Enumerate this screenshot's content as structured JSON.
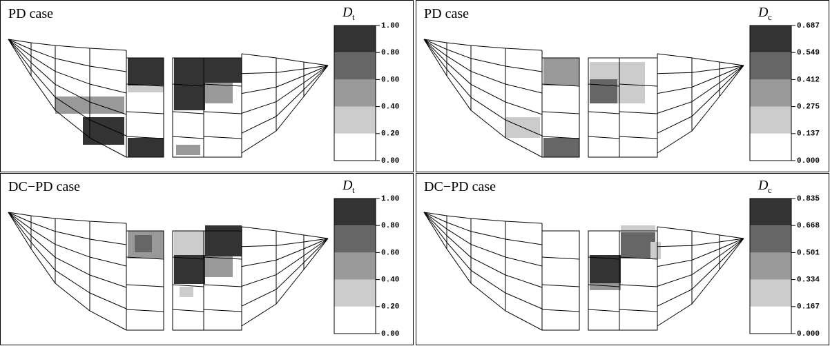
{
  "panels": [
    {
      "title": "PD case",
      "legend": {
        "symbol": "D",
        "subscript": "t",
        "ticks": [
          "1.00",
          "0.80",
          "0.60",
          "0.40",
          "0.20",
          "0.00"
        ]
      }
    },
    {
      "title": "PD case",
      "legend": {
        "symbol": "D",
        "subscript": "c",
        "ticks": [
          "0.687",
          "0.549",
          "0.412",
          "0.275",
          "0.137",
          "0.000"
        ]
      }
    },
    {
      "title": "DC−PD case",
      "legend": {
        "symbol": "D",
        "subscript": "t",
        "ticks": [
          "1.00",
          "0.80",
          "0.60",
          "0.40",
          "0.20",
          "0.00"
        ]
      }
    },
    {
      "title": "DC−PD case",
      "legend": {
        "symbol": "D",
        "subscript": "c",
        "ticks": [
          "0.835",
          "0.668",
          "0.501",
          "0.334",
          "0.167",
          "0.000"
        ]
      }
    }
  ]
}
